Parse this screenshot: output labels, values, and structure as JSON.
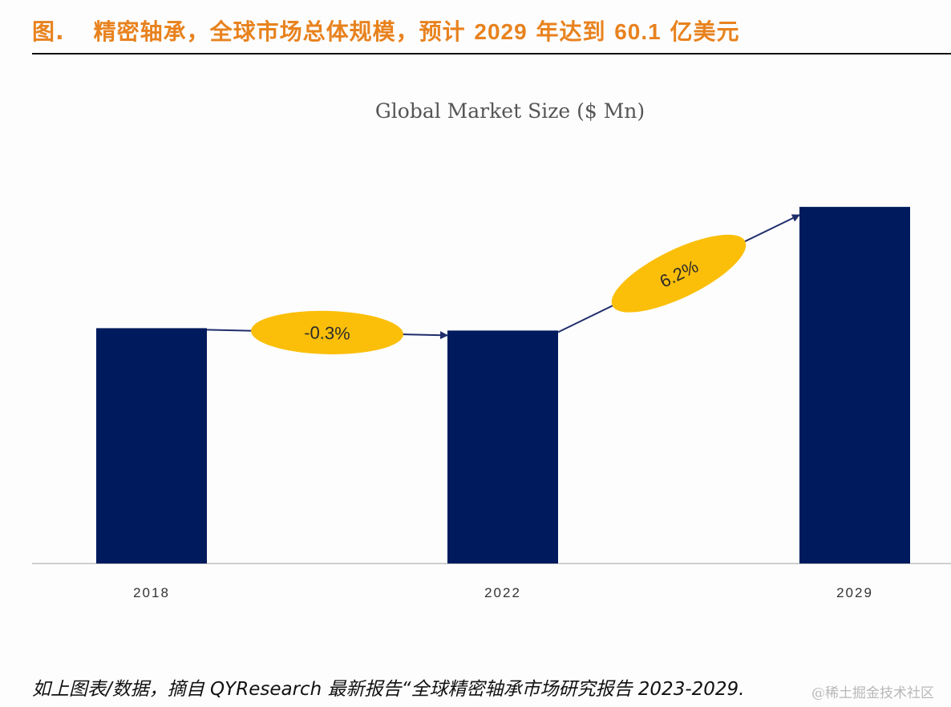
{
  "figure": {
    "prefix": "图.",
    "title_part1": "精密轴承，全球市场总体规模，预计",
    "title_year": "2029",
    "title_part2": "年达到",
    "title_value": "60.1",
    "title_part3": "亿美元"
  },
  "caption": "如上图表/数据，摘自 QYResearch 最新报告“全球精密轴承市场研究报告 2023-2029.",
  "watermark": "@稀土掘金技术社区",
  "colors": {
    "title": "#e8821e",
    "bar": "#001a5e",
    "bubble": "#fbbf0a",
    "arrow": "#1f2d6b"
  },
  "chart_data": {
    "type": "bar",
    "title": "Global Market Size ($ Mn)",
    "xlabel": "",
    "ylabel": "",
    "categories": [
      "2018",
      "2022",
      "2029"
    ],
    "values": [
      3966,
      3926,
      6010
    ],
    "ylim": [
      0,
      7200
    ],
    "grid": false,
    "axis_visible": false,
    "annotations": [
      {
        "from": "2018",
        "to": "2022",
        "label": "-0.3%",
        "meaning": "CAGR"
      },
      {
        "from": "2022",
        "to": "2029",
        "label": "6.2%",
        "meaning": "CAGR"
      }
    ]
  }
}
